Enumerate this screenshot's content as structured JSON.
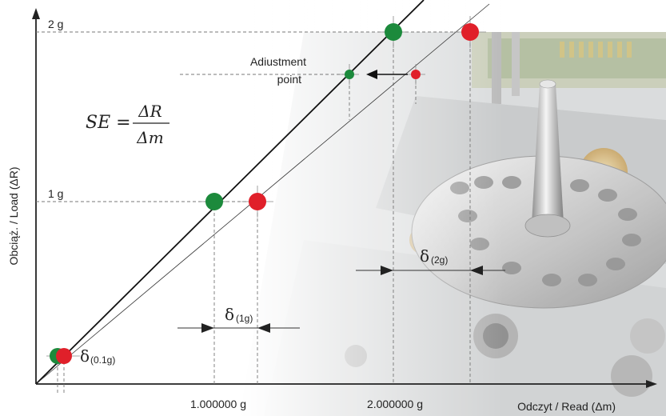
{
  "labels": {
    "y_axis": "Obciąż. / Load (ΔR)",
    "x_axis": "Odczyt / Read (Δm)",
    "y_tick_2g": "2 g",
    "y_tick_1g": "1 g",
    "x_tick_1": "1.000000 g",
    "x_tick_2": "2.000000 g",
    "adjustment_line1": "Adiustment",
    "adjustment_line2": "point"
  },
  "formula": {
    "lhs": "SE =",
    "numerator": "ΔR",
    "denominator": "Δm"
  },
  "deltas": {
    "symbol": "δ",
    "d_01g": "(0.1g)",
    "d_1g": "(1g)",
    "d_2g": "(2g)"
  },
  "colors": {
    "green": "#1c8a3c",
    "red": "#e0202a",
    "axis": "#222222"
  }
}
